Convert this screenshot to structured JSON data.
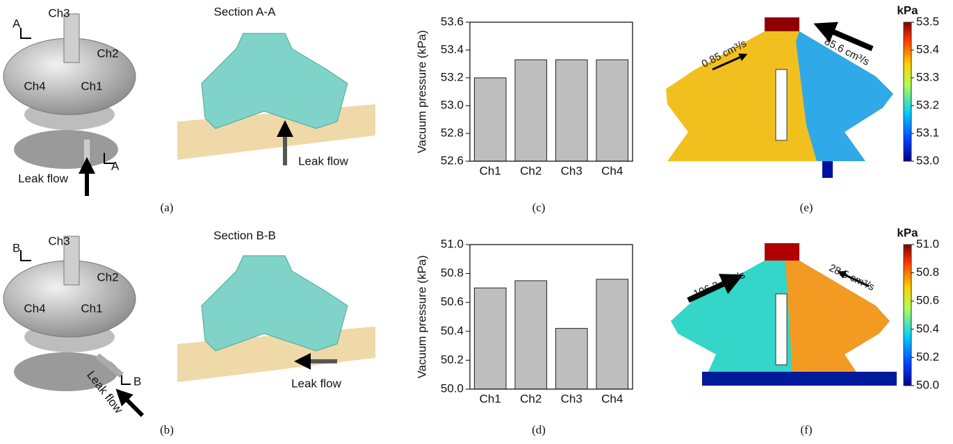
{
  "panel_labels": [
    "(a)",
    "(b)",
    "(c)",
    "(d)",
    "(e)",
    "(f)"
  ],
  "panel_a": {
    "channels": [
      "Ch3",
      "Ch2",
      "Ch4",
      "Ch1"
    ],
    "section_marks": [
      "A",
      "A"
    ],
    "leak": "Leak flow"
  },
  "panel_a_section": {
    "title": "Section A-A",
    "leak": "Leak flow"
  },
  "panel_b": {
    "channels": [
      "Ch3",
      "Ch2",
      "Ch4",
      "Ch1"
    ],
    "section_marks": [
      "B",
      "B"
    ],
    "leak": "Leak flow"
  },
  "panel_b_section": {
    "title": "Section B-B",
    "leak": "Leak flow"
  },
  "chart_data": [
    {
      "type": "bar",
      "y_label": "Vacuum pressure (kPa)",
      "categories": [
        "Ch1",
        "Ch2",
        "Ch3",
        "Ch4"
      ],
      "values": [
        53.2,
        53.33,
        53.33,
        53.33
      ],
      "color": "#bebebe",
      "ylim": [
        52.6,
        53.6
      ],
      "yticks": [
        52.6,
        52.8,
        {
          "value": 53.0,
          "label": "53.0"
        },
        53.2,
        53.4,
        53.6
      ]
    },
    {
      "type": "bar",
      "y_label": "Vacuum pressure (kPa)",
      "categories": [
        "Ch1",
        "Ch2",
        "Ch3",
        "Ch4"
      ],
      "values": [
        50.7,
        50.75,
        50.42,
        50.76
      ],
      "color": "#bebebe",
      "ylim": [
        50.0,
        51.0
      ],
      "yticks": [
        {
          "value": 50.0,
          "label": "50.0"
        },
        50.2,
        50.4,
        50.6,
        50.8,
        {
          "value": 51.0,
          "label": "51.0"
        }
      ]
    },
    {
      "type": "colorbar",
      "title": "kPa",
      "annotations": [
        "0.85 cm³/s",
        "85.6 cm³/s"
      ],
      "ylim": [
        53.0,
        53.5
      ],
      "yticks": [
        {
          "value": 53.0,
          "label": "53.0"
        },
        53.1,
        53.2,
        53.3,
        53.4,
        53.5
      ]
    },
    {
      "type": "colorbar",
      "title": "kPa",
      "annotations": [
        "106.3 cm³/s",
        "28.5 cm³/s"
      ],
      "ylim": [
        50.0,
        51.0
      ],
      "yticks": [
        {
          "value": 50.0,
          "label": "50.0"
        },
        50.2,
        50.4,
        50.6,
        50.8,
        {
          "value": 51.0,
          "label": "51.0"
        }
      ]
    }
  ]
}
